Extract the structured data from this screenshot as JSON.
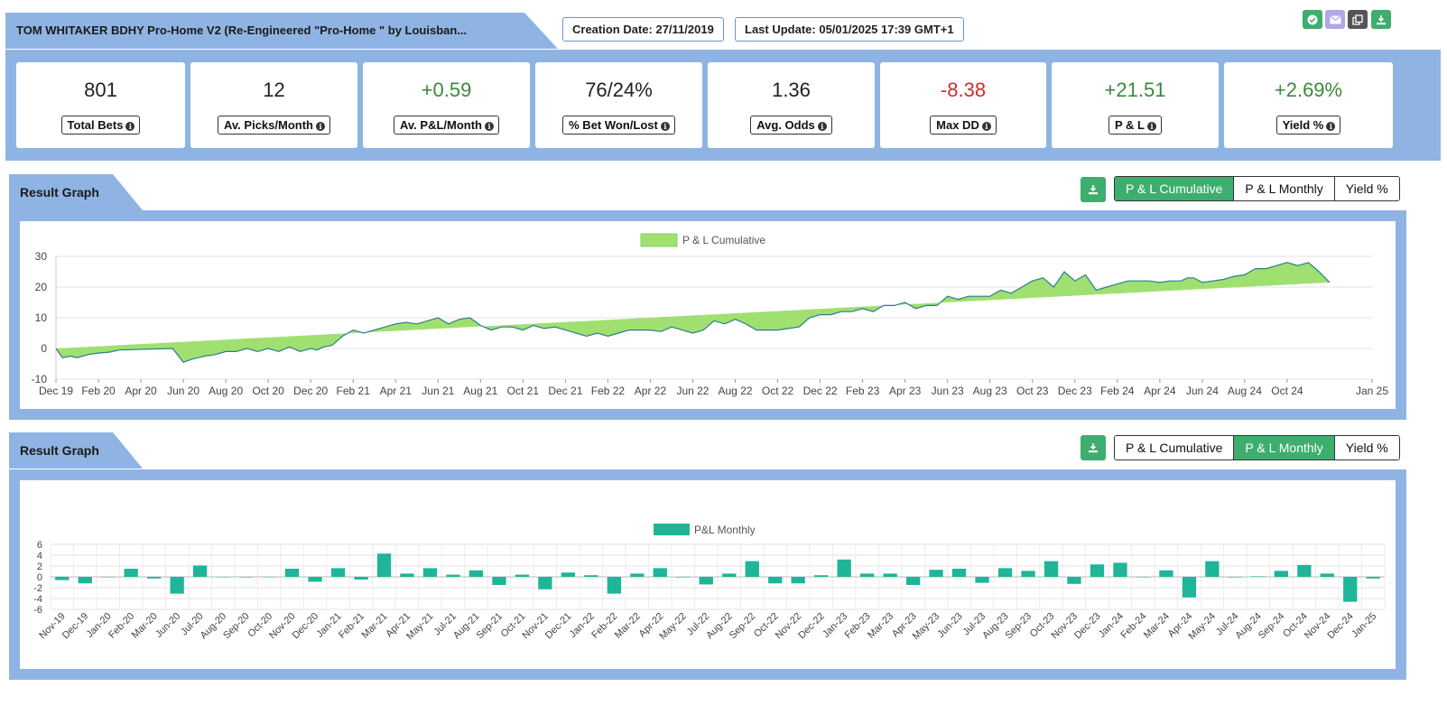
{
  "header": {
    "title": "TOM WHITAKER BDHY Pro-Home V2 (Re-Engineered \"Pro-Home \" by Louisban...",
    "creation_date": "Creation Date: 27/11/2019",
    "last_update": "Last Update: 05/01/2025 17:39 GMT+1",
    "icons": [
      {
        "name": "check-icon",
        "color": "#3dae6e"
      },
      {
        "name": "mail-icon",
        "color": "#b0a8e6"
      },
      {
        "name": "copy-icon",
        "color": "#555555"
      },
      {
        "name": "download-icon",
        "color": "#3dae6e"
      }
    ]
  },
  "stats": [
    {
      "value": "801",
      "label": "Total Bets",
      "tone": "neutral"
    },
    {
      "value": "12",
      "label": "Av. Picks/Month",
      "tone": "neutral"
    },
    {
      "value": "+0.59",
      "label": "Av. P&L/Month",
      "tone": "pos"
    },
    {
      "value": "76/24%",
      "label": "% Bet Won/Lost",
      "tone": "neutral"
    },
    {
      "value": "1.36",
      "label": "Avg. Odds",
      "tone": "neutral"
    },
    {
      "value": "-8.38",
      "label": "Max DD",
      "tone": "neg"
    },
    {
      "value": "+21.51",
      "label": "P & L",
      "tone": "pos"
    },
    {
      "value": "+2.69%",
      "label": "Yield %",
      "tone": "pos"
    }
  ],
  "section1": {
    "title": "Result Graph",
    "tabs": [
      "P & L Cumulative",
      "P & L Monthly",
      "Yield %"
    ],
    "active_tab": 0
  },
  "section2": {
    "title": "Result Graph",
    "tabs": [
      "P & L Cumulative",
      "P & L Monthly",
      "Yield %"
    ],
    "active_tab": 1
  },
  "colors": {
    "accent_green": "#3dae6e",
    "panel_blue": "#8fb4e3",
    "area_fill": "#a0e070",
    "area_line": "#2e7d8a",
    "bar_fill": "#1fb598",
    "positive": "#3a8a3a",
    "negative": "#d42a2a"
  },
  "chart_data": [
    {
      "type": "area",
      "legend": "P & L Cumulative",
      "legend_position": "top-center",
      "grid": true,
      "ylim": [
        -10,
        30
      ],
      "yticks": [
        -10,
        0,
        10,
        20,
        30
      ],
      "xtick_labels": [
        "Dec 19",
        "Feb 20",
        "Apr 20",
        "Jun 20",
        "Aug 20",
        "Oct 20",
        "Dec 20",
        "Feb 21",
        "Apr 21",
        "Jun 21",
        "Aug 21",
        "Oct 21",
        "Dec 21",
        "Feb 22",
        "Apr 22",
        "Jun 22",
        "Aug 22",
        "Oct 22",
        "Dec 22",
        "Feb 23",
        "Apr 23",
        "Jun 23",
        "Aug 23",
        "Oct 23",
        "Dec 23",
        "Feb 24",
        "Apr 24",
        "Jun 24",
        "Aug 24",
        "Oct 24",
        "Jan 25"
      ],
      "x_months_from_dec19": [
        0,
        0.3,
        0.7,
        1,
        1.5,
        2,
        2.5,
        3,
        5.5,
        6,
        6.4,
        6.7,
        7,
        7.5,
        8,
        8.5,
        9,
        9.5,
        10,
        10.5,
        11,
        11.5,
        12,
        12.3,
        12.6,
        13,
        13.5,
        14,
        14.5,
        15,
        15.5,
        16,
        16.5,
        17,
        17.5,
        18,
        18.5,
        19,
        19.5,
        20,
        20.5,
        21,
        21.5,
        22,
        22.5,
        23,
        23.5,
        24,
        24.5,
        25,
        25.5,
        26,
        26.5,
        27,
        27.5,
        28,
        28.5,
        29,
        29.5,
        30,
        30.5,
        31,
        31.5,
        32,
        32.5,
        33,
        33.5,
        34,
        34.5,
        35,
        35.5,
        36,
        36.5,
        37,
        37.5,
        38,
        38.5,
        39,
        39.5,
        40,
        40.5,
        41,
        41.5,
        42,
        42.5,
        43,
        43.5,
        44,
        44.5,
        45,
        45.5,
        46,
        46.5,
        47,
        47.5,
        48,
        48.5,
        49,
        49.5,
        50,
        50.5,
        51,
        51.5,
        52,
        52.5,
        53,
        53.3,
        53.6,
        54,
        54.5,
        55,
        55.5,
        56,
        56.5,
        57,
        57.5,
        58,
        58.5,
        59,
        59.5,
        60,
        60.5,
        61,
        61.5,
        62
      ],
      "values": [
        0,
        -3,
        -2.5,
        -3,
        -2,
        -1.5,
        -1.2,
        -0.5,
        0,
        -4.5,
        -3.5,
        -3,
        -2.5,
        -2,
        -1,
        -1,
        0,
        -1,
        0,
        -1,
        0.5,
        -1,
        0,
        -0.5,
        0.5,
        1,
        4,
        6,
        5,
        6,
        7,
        8,
        8.5,
        8,
        9,
        10,
        8,
        9.5,
        10,
        7.5,
        6,
        7,
        7,
        6,
        7.5,
        6.5,
        7,
        6,
        5,
        4,
        5,
        4,
        5,
        6,
        6,
        6,
        5.5,
        7,
        6,
        5,
        6,
        9,
        8,
        9.5,
        8,
        6,
        6,
        6,
        6.5,
        7,
        10,
        11,
        11,
        12,
        12,
        13,
        12,
        14,
        14,
        15,
        13,
        14,
        14,
        17,
        16,
        17,
        17,
        17,
        19,
        18,
        20,
        22,
        23,
        20,
        25,
        22,
        24,
        19,
        20,
        21,
        22,
        22,
        22,
        21.5,
        22,
        22,
        23,
        23,
        21.5,
        22,
        22.5,
        23.5,
        24,
        26,
        26,
        27,
        28,
        27,
        28,
        25,
        21.5
      ],
      "x_months_total": 62
    },
    {
      "type": "bar",
      "legend": "P&L Monthly",
      "legend_position": "top-center",
      "grid": true,
      "ylim": [
        -6,
        6
      ],
      "yticks": [
        6,
        4,
        2,
        0,
        -2,
        -4,
        -6
      ],
      "categories": [
        "Nov-19",
        "Dec-19",
        "Jan-20",
        "Feb-20",
        "Mar-20",
        "Jun-20",
        "Jul-20",
        "Aug-20",
        "Sep-20",
        "Oct-20",
        "Nov-20",
        "Dec-20",
        "Jan-21",
        "Feb-21",
        "Mar-21",
        "Apr-21",
        "May-21",
        "Jul-21",
        "Aug-21",
        "Sep-21",
        "Oct-21",
        "Nov-21",
        "Dec-21",
        "Jan-22",
        "Feb-22",
        "Mar-22",
        "Apr-22",
        "May-22",
        "Jul-22",
        "Aug-22",
        "Sep-22",
        "Oct-22",
        "Nov-22",
        "Dec-22",
        "Jan-23",
        "Feb-23",
        "Mar-23",
        "Apr-23",
        "May-23",
        "Jun-23",
        "Jul-23",
        "Aug-23",
        "Sep-23",
        "Oct-23",
        "Nov-23",
        "Dec-23",
        "Jan-24",
        "Feb-24",
        "Mar-24",
        "Apr-24",
        "May-24",
        "Jul-24",
        "Aug-24",
        "Sep-24",
        "Oct-24",
        "Nov-24",
        "Dec-24",
        "Jan-25"
      ],
      "values": [
        -0.6,
        -1.2,
        0,
        1.5,
        -0.3,
        -3.1,
        2.1,
        0,
        -0.1,
        0,
        1.5,
        -0.9,
        1.6,
        -0.5,
        4.3,
        0.6,
        1.6,
        0.4,
        1.2,
        -1.5,
        0.4,
        -2.3,
        0.8,
        0.3,
        -3.1,
        0.6,
        1.6,
        -0.1,
        -1.4,
        0.6,
        2.9,
        -1.2,
        -1.2,
        0.3,
        3.2,
        0.6,
        0.6,
        -1.5,
        1.3,
        1.5,
        -1.1,
        1.6,
        1.1,
        2.9,
        -1.3,
        2.3,
        2.6,
        0,
        1.2,
        -3.8,
        2.9,
        -0.1,
        0.1,
        1.1,
        2.2,
        0.6,
        -4.6,
        -0.3
      ]
    }
  ]
}
